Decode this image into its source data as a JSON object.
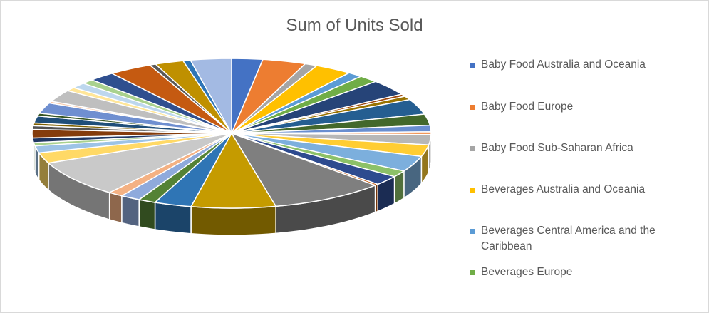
{
  "chart_data": {
    "type": "pie",
    "title": "Sum of Units Sold",
    "legend_position": "right",
    "legend": [
      {
        "label": "Baby Food Australia and Oceania",
        "color": "#4472c4"
      },
      {
        "label": "Baby Food Europe",
        "color": "#ed7d31"
      },
      {
        "label": "Baby Food Sub-Saharan Africa",
        "color": "#a5a5a5"
      },
      {
        "label": "Beverages Australia and Oceania",
        "color": "#ffc000"
      },
      {
        "label": "Beverages Central America and the Caribbean",
        "color": "#5b9bd5"
      },
      {
        "label": "Beverages Europe",
        "color": "#70ad47"
      }
    ],
    "slices": [
      {
        "value": 2.5,
        "color": "#4472c4"
      },
      {
        "value": 3.5,
        "color": "#ed7d31"
      },
      {
        "value": 1.0,
        "color": "#a5a5a5"
      },
      {
        "value": 3.0,
        "color": "#ffc000"
      },
      {
        "value": 1.2,
        "color": "#5b9bd5"
      },
      {
        "value": 1.6,
        "color": "#70ad47"
      },
      {
        "value": 3.4,
        "color": "#264478"
      },
      {
        "value": 0.5,
        "color": "#9e480e"
      },
      {
        "value": 0.8,
        "color": "#997300"
      },
      {
        "value": 3.3,
        "color": "#255e91"
      },
      {
        "value": 2.4,
        "color": "#43682b"
      },
      {
        "value": 1.4,
        "color": "#698ed0"
      },
      {
        "value": 0.6,
        "color": "#f1975a"
      },
      {
        "value": 2.2,
        "color": "#b7b7b7"
      },
      {
        "value": 2.5,
        "color": "#ffcd33"
      },
      {
        "value": 3.4,
        "color": "#7cafdd"
      },
      {
        "value": 1.4,
        "color": "#8cc168"
      },
      {
        "value": 2.1,
        "color": "#2e4b8f"
      },
      {
        "value": 0.3,
        "color": "#c55a11"
      },
      {
        "value": 9.2,
        "color": "#7f7f7f"
      },
      {
        "value": 6.8,
        "color": "#c59b00"
      },
      {
        "value": 3.0,
        "color": "#2f75b5"
      },
      {
        "value": 1.4,
        "color": "#548235"
      },
      {
        "value": 1.6,
        "color": "#8faadc"
      },
      {
        "value": 1.2,
        "color": "#f4b183"
      },
      {
        "value": 8.0,
        "color": "#c9c9c9"
      },
      {
        "value": 2.3,
        "color": "#ffd966"
      },
      {
        "value": 1.5,
        "color": "#9dc3e6"
      },
      {
        "value": 0.7,
        "color": "#a9d18e"
      },
      {
        "value": 1.0,
        "color": "#203864"
      },
      {
        "value": 1.8,
        "color": "#843c0c"
      },
      {
        "value": 0.8,
        "color": "#525252"
      },
      {
        "value": 0.6,
        "color": "#7f6000"
      },
      {
        "value": 1.5,
        "color": "#1f4e79"
      },
      {
        "value": 0.6,
        "color": "#385723"
      },
      {
        "value": 2.3,
        "color": "#6f8fd0"
      },
      {
        "value": 0.4,
        "color": "#f8cbad"
      },
      {
        "value": 2.6,
        "color": "#bfbfbf"
      },
      {
        "value": 0.8,
        "color": "#ffe699"
      },
      {
        "value": 1.2,
        "color": "#bdd7ee"
      },
      {
        "value": 1.0,
        "color": "#a9d18e"
      },
      {
        "value": 2.1,
        "color": "#2f4f8f"
      },
      {
        "value": 3.5,
        "color": "#c55a11"
      },
      {
        "value": 0.5,
        "color": "#595959"
      },
      {
        "value": 2.3,
        "color": "#bf9000"
      },
      {
        "value": 0.6,
        "color": "#2e75b6"
      },
      {
        "value": 3.3,
        "color": "#a3bae3"
      }
    ]
  }
}
